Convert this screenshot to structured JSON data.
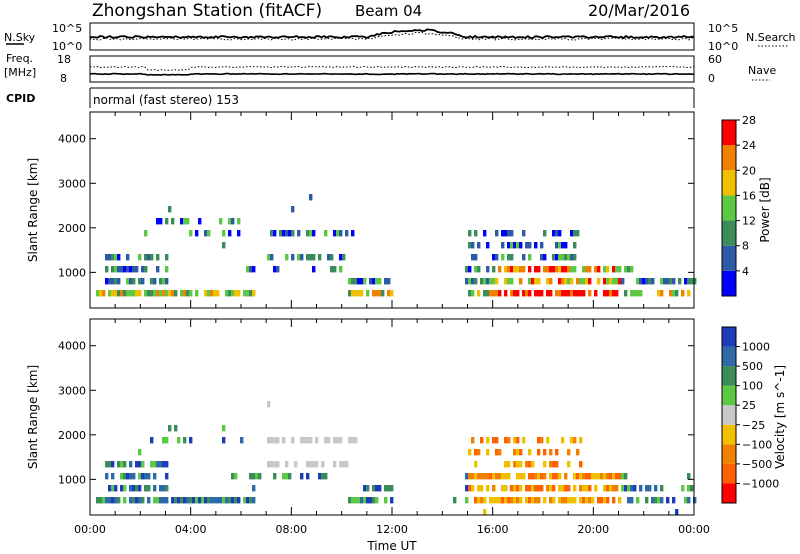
{
  "header": {
    "station": "Zhongshan Station (fitACF)",
    "beam": "Beam 04",
    "date": "20/Mar/2016"
  },
  "panels": {
    "nsky": {
      "left_label": "N.Sky",
      "right_label": "N.Search",
      "left_ticks": [
        "10^5",
        "10^0"
      ],
      "right_ticks": [
        "10^5",
        "10^0"
      ]
    },
    "freq": {
      "left_label_line1": "Freq.",
      "left_label_line2": "[MHz]",
      "right_label": "Nave",
      "left_ticks": [
        "18",
        "8"
      ],
      "right_ticks": [
        "60",
        "0"
      ]
    },
    "cpid": {
      "label": "CPID",
      "text": "normal (fast stereo) 153"
    }
  },
  "chart_data": [
    {
      "type": "heatmap",
      "name": "power",
      "xlabel": "",
      "ylabel": "Slant Range [km]",
      "ylim": [
        200,
        4600
      ],
      "xlim": [
        0,
        24
      ],
      "yticks": [
        "1000",
        "2000",
        "3000",
        "4000"
      ],
      "colorbar": {
        "label": "Power [dB]",
        "ticks": [
          "4",
          "8",
          "12",
          "16",
          "20",
          "24",
          "28"
        ],
        "colors": [
          "#0000ff",
          "#2c5aa8",
          "#3a8c5a",
          "#5cc843",
          "#f0c000",
          "#f08000",
          "#ff0000"
        ]
      }
    },
    {
      "type": "heatmap",
      "name": "velocity",
      "xlabel": "Time UT",
      "ylabel": "Slant Range [km]",
      "ylim": [
        200,
        4600
      ],
      "xlim": [
        0,
        24
      ],
      "yticks": [
        "1000",
        "2000",
        "3000",
        "4000"
      ],
      "xticks": [
        "00:00",
        "04:00",
        "08:00",
        "12:00",
        "16:00",
        "20:00",
        "00:00"
      ],
      "colorbar": {
        "label": "Velocity [m s^-1]",
        "ticks": [
          "1000",
          "500",
          "100",
          "25",
          "−25",
          "−100",
          "−500",
          "−1000"
        ],
        "colors": [
          "#1c3cb8",
          "#2f6aa8",
          "#3a8c5a",
          "#5cc843",
          "#c8c8c8",
          "#f0c000",
          "#f08000",
          "#ff6000",
          "#ff0000"
        ]
      }
    }
  ]
}
